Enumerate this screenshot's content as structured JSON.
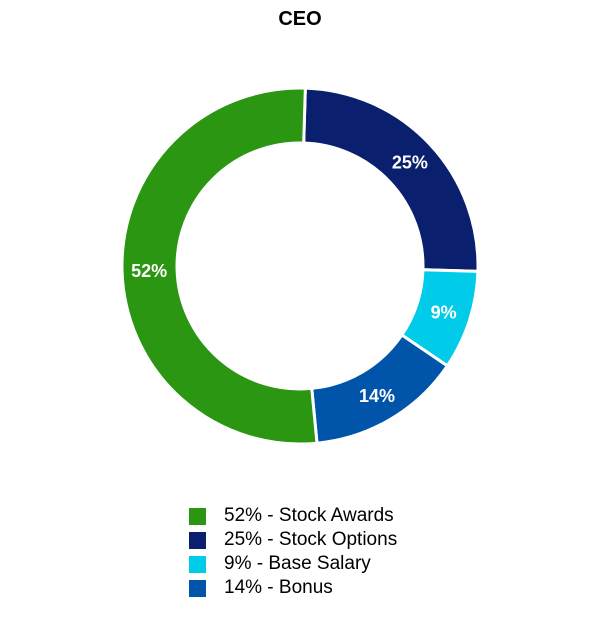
{
  "chart_data": {
    "type": "pie",
    "style": "donut",
    "title": "CEO",
    "slices": [
      {
        "label": "25%",
        "legend": "25% - Stock Options",
        "value": 25,
        "color": "#0a1f6e"
      },
      {
        "label": "9%",
        "legend": "9% - Base Salary",
        "value": 9,
        "color": "#00ccea"
      },
      {
        "label": "14%",
        "legend": "14% - Bonus",
        "value": 14,
        "color": "#0055aa"
      },
      {
        "label": "52%",
        "legend": "52% - Stock Awards",
        "value": 52,
        "color": "#2a9612"
      }
    ],
    "legend_order": [
      3,
      0,
      1,
      2
    ],
    "legend_placement": "bottom"
  }
}
